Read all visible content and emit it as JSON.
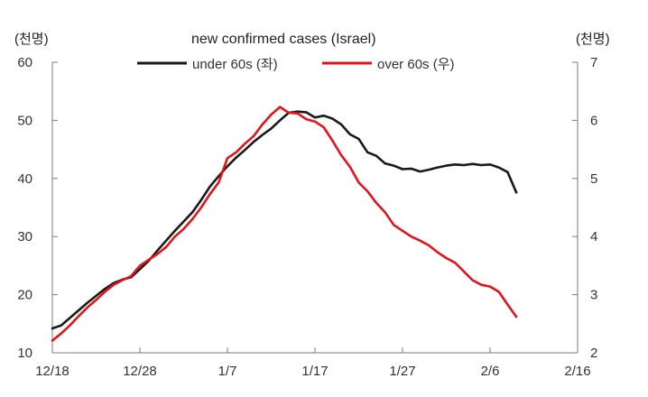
{
  "chart_data": {
    "type": "line",
    "title": "new confirmed cases (Israel)",
    "left_unit": "(천명)",
    "right_unit": "(천명)",
    "x_ticks": [
      "12/18",
      "12/28",
      "1/7",
      "1/17",
      "1/27",
      "2/6",
      "2/16"
    ],
    "x_range_days": [
      0,
      60
    ],
    "y_left": {
      "range": [
        10,
        60
      ],
      "ticks": [
        "60",
        "50",
        "40",
        "30",
        "20",
        "10"
      ]
    },
    "y_right": {
      "range": [
        2,
        7
      ],
      "ticks": [
        "7",
        "6",
        "5",
        "4",
        "3",
        "2"
      ]
    },
    "legend_position": "top-center",
    "grid": false,
    "series": [
      {
        "name": "under 60s (좌)",
        "color": "#1a1a1a",
        "axis": "left",
        "x": [
          0,
          1,
          2,
          3,
          4,
          5,
          6,
          7,
          8,
          9,
          10,
          11,
          12,
          13,
          14,
          15,
          16,
          17,
          18,
          19,
          20,
          21,
          22,
          23,
          24,
          25,
          26,
          27,
          28,
          29,
          30,
          31,
          32,
          33,
          34,
          35,
          36,
          37,
          38,
          39,
          40,
          41,
          42,
          43,
          44,
          45,
          46,
          47,
          48,
          49,
          50,
          51,
          52,
          53
        ],
        "values": [
          14.2,
          14.7,
          16.0,
          17.3,
          18.6,
          19.8,
          21.0,
          22.0,
          22.6,
          23.0,
          24.4,
          25.8,
          27.6,
          29.3,
          31.0,
          32.6,
          34.2,
          36.3,
          38.6,
          40.4,
          42.1,
          43.6,
          44.9,
          46.3,
          47.5,
          48.6,
          50.0,
          51.3,
          51.5,
          51.4,
          50.5,
          50.8,
          50.3,
          49.3,
          47.6,
          46.8,
          44.5,
          43.9,
          42.6,
          42.2,
          41.6,
          41.7,
          41.2,
          41.5,
          41.9,
          42.2,
          42.4,
          42.3,
          42.5,
          42.3,
          42.4,
          41.9,
          41.1,
          37.6
        ]
      },
      {
        "name": "over 60s (우)",
        "color": "#e2141b",
        "axis": "right",
        "x": [
          0,
          1,
          2,
          3,
          4,
          5,
          6,
          7,
          8,
          9,
          10,
          11,
          12,
          13,
          14,
          15,
          16,
          17,
          18,
          19,
          20,
          21,
          22,
          23,
          24,
          25,
          26,
          27,
          28,
          29,
          30,
          31,
          32,
          33,
          34,
          35,
          36,
          37,
          38,
          39,
          40,
          41,
          42,
          43,
          44,
          45,
          46,
          47,
          48,
          49,
          50,
          51,
          52,
          53
        ],
        "values": [
          2.21,
          2.33,
          2.47,
          2.63,
          2.78,
          2.91,
          3.05,
          3.17,
          3.25,
          3.32,
          3.5,
          3.6,
          3.7,
          3.82,
          4.0,
          4.13,
          4.3,
          4.5,
          4.73,
          4.93,
          5.35,
          5.45,
          5.6,
          5.73,
          5.93,
          6.1,
          6.23,
          6.13,
          6.12,
          6.02,
          5.98,
          5.88,
          5.65,
          5.4,
          5.2,
          4.93,
          4.78,
          4.58,
          4.42,
          4.2,
          4.1,
          4.0,
          3.93,
          3.85,
          3.73,
          3.63,
          3.55,
          3.4,
          3.25,
          3.17,
          3.14,
          3.05,
          2.83,
          2.62
        ]
      }
    ]
  }
}
